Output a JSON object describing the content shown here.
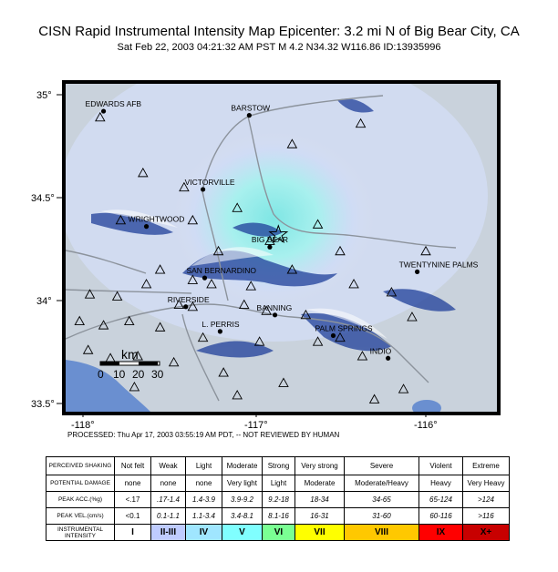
{
  "header": {
    "title": "CISN Rapid Instrumental Intensity Map Epicenter: 3.2 mi N of Big Bear City, CA",
    "subtitle": "Sat Feb 22, 2003 04:21:32 AM PST   M 4.2   N34.32 W116.86   ID:13935996"
  },
  "map": {
    "lat_labels": [
      "35°",
      "34.5°",
      "34°",
      "33.5°"
    ],
    "lon_labels": [
      "-118°",
      "-117°",
      "-116°"
    ],
    "colors": {
      "land": "#c9d2dc",
      "ocean": "#6a8fd0",
      "high_intensity": "#7fe6e4",
      "mountain_shadow": "#1f3f9a"
    },
    "cities": [
      {
        "name": "EDWARDS AFB",
        "lon": -117.88,
        "lat": 34.92
      },
      {
        "name": "BARSTOW",
        "lon": -117.03,
        "lat": 34.9
      },
      {
        "name": "VICTORVILLE",
        "lon": -117.3,
        "lat": 34.54
      },
      {
        "name": "WRIGHTWOOD",
        "lon": -117.63,
        "lat": 34.36
      },
      {
        "name": "BIG BEAR",
        "lon": -116.91,
        "lat": 34.26
      },
      {
        "name": "SAN BERNARDINO",
        "lon": -117.29,
        "lat": 34.11
      },
      {
        "name": "TWENTYNINE PALMS",
        "lon": -116.05,
        "lat": 34.14
      },
      {
        "name": "RIVERSIDE",
        "lon": -117.4,
        "lat": 33.97
      },
      {
        "name": "BANNING",
        "lon": -116.88,
        "lat": 33.93
      },
      {
        "name": "L. PERRIS",
        "lon": -117.2,
        "lat": 33.85
      },
      {
        "name": "PALM SPRINGS",
        "lon": -116.54,
        "lat": 33.83
      },
      {
        "name": "INDIO",
        "lon": -116.22,
        "lat": 33.72
      }
    ],
    "epicenter": {
      "lon": -116.86,
      "lat": 34.32
    },
    "stations": [
      {
        "lon": -117.9,
        "lat": 34.89
      },
      {
        "lon": -117.65,
        "lat": 34.62
      },
      {
        "lon": -116.38,
        "lat": 34.86
      },
      {
        "lon": -116.78,
        "lat": 34.76
      },
      {
        "lon": -117.41,
        "lat": 34.55
      },
      {
        "lon": -117.1,
        "lat": 34.45
      },
      {
        "lon": -116.63,
        "lat": 34.37
      },
      {
        "lon": -116.0,
        "lat": 34.24
      },
      {
        "lon": -117.78,
        "lat": 34.39
      },
      {
        "lon": -117.36,
        "lat": 34.39
      },
      {
        "lon": -117.21,
        "lat": 34.24
      },
      {
        "lon": -116.91,
        "lat": 34.29
      },
      {
        "lon": -116.5,
        "lat": 34.24
      },
      {
        "lon": -117.55,
        "lat": 34.15
      },
      {
        "lon": -117.36,
        "lat": 34.1
      },
      {
        "lon": -117.25,
        "lat": 34.08
      },
      {
        "lon": -117.02,
        "lat": 34.07
      },
      {
        "lon": -116.78,
        "lat": 34.15
      },
      {
        "lon": -116.42,
        "lat": 34.08
      },
      {
        "lon": -116.2,
        "lat": 34.04
      },
      {
        "lon": -117.96,
        "lat": 34.03
      },
      {
        "lon": -117.8,
        "lat": 34.02
      },
      {
        "lon": -117.63,
        "lat": 34.08
      },
      {
        "lon": -117.44,
        "lat": 33.98
      },
      {
        "lon": -117.36,
        "lat": 33.97
      },
      {
        "lon": -117.06,
        "lat": 33.98
      },
      {
        "lon": -116.93,
        "lat": 33.95
      },
      {
        "lon": -116.7,
        "lat": 33.93
      },
      {
        "lon": -116.5,
        "lat": 33.82
      },
      {
        "lon": -116.08,
        "lat": 33.92
      },
      {
        "lon": -118.02,
        "lat": 33.9
      },
      {
        "lon": -117.88,
        "lat": 33.88
      },
      {
        "lon": -117.73,
        "lat": 33.9
      },
      {
        "lon": -117.55,
        "lat": 33.87
      },
      {
        "lon": -117.3,
        "lat": 33.82
      },
      {
        "lon": -116.97,
        "lat": 33.8
      },
      {
        "lon": -116.63,
        "lat": 33.8
      },
      {
        "lon": -116.37,
        "lat": 33.73
      },
      {
        "lon": -117.97,
        "lat": 33.76
      },
      {
        "lon": -117.84,
        "lat": 33.72
      },
      {
        "lon": -117.68,
        "lat": 33.73
      },
      {
        "lon": -117.47,
        "lat": 33.7
      },
      {
        "lon": -117.18,
        "lat": 33.65
      },
      {
        "lon": -116.83,
        "lat": 33.6
      },
      {
        "lon": -116.13,
        "lat": 33.57
      },
      {
        "lon": -117.7,
        "lat": 33.58
      },
      {
        "lon": -117.1,
        "lat": 33.54
      },
      {
        "lon": -116.3,
        "lat": 33.52
      }
    ],
    "scale_bar": {
      "unit": "km",
      "ticks": [
        "0",
        "10",
        "20",
        "30"
      ]
    }
  },
  "processed_note": "PROCESSED: Thu Apr 17, 2003 03:55:19 AM PDT, -- NOT REVIEWED BY HUMAN",
  "legend": {
    "rows": [
      {
        "label": "PERCEIVED SHAKING",
        "cells": [
          "Not felt",
          "Weak",
          "Light",
          "Moderate",
          "Strong",
          "Very strong",
          "Severe",
          "Violent",
          "Extreme"
        ]
      },
      {
        "label": "POTENTIAL DAMAGE",
        "cells": [
          "none",
          "none",
          "none",
          "Very light",
          "Light",
          "Moderate",
          "Moderate/Heavy",
          "Heavy",
          "Very Heavy"
        ]
      },
      {
        "label": "PEAK ACC.(%g)",
        "cells": [
          "<.17",
          ".17-1.4",
          "1.4-3.9",
          "3.9-9.2",
          "9.2-18",
          "18-34",
          "34-65",
          "65-124",
          ">124"
        ]
      },
      {
        "label": "PEAK VEL.(cm/s)",
        "cells": [
          "<0.1",
          "0.1-1.1",
          "1.1-3.4",
          "3.4-8.1",
          "8.1-16",
          "16-31",
          "31-60",
          "60-116",
          ">116"
        ]
      },
      {
        "label": "INSTRUMENTAL INTENSITY",
        "cells": [
          "I",
          "II-III",
          "IV",
          "V",
          "VI",
          "VII",
          "VIII",
          "IX",
          "X+"
        ]
      }
    ],
    "intensity_colors": [
      "#ffffff",
      "#bfccff",
      "#a0e6ff",
      "#80ffff",
      "#7aff93",
      "#ffff00",
      "#ffc800",
      "#ff0000",
      "#c80000"
    ]
  }
}
